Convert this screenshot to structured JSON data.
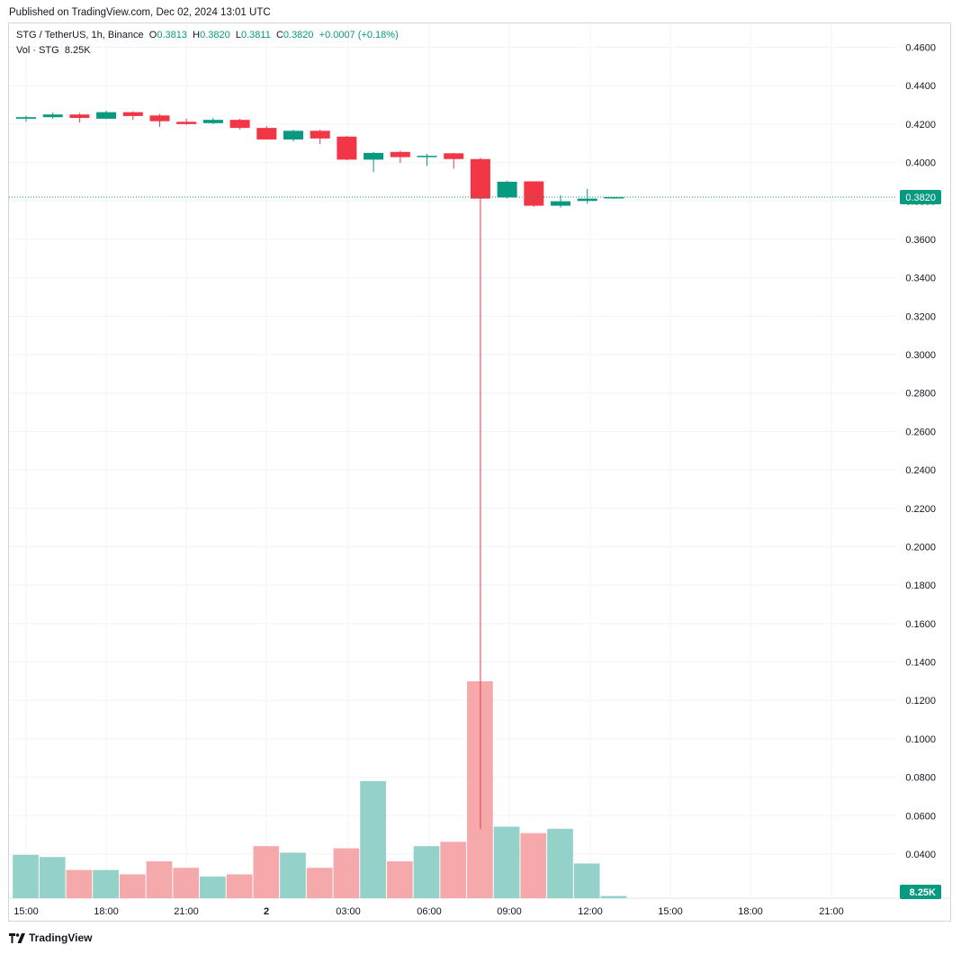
{
  "published": "Published on TradingView.com, Dec 02, 2024 13:01 UTC",
  "legend": {
    "symbol": "STG / TetherUS, 1h, Binance",
    "o_label": "O",
    "o": "0.3813",
    "h_label": "H",
    "h": "0.3820",
    "l_label": "L",
    "l": "0.3811",
    "c_label": "C",
    "c": "0.3820",
    "change": "+0.0007 (+0.18%)"
  },
  "volume_legend": {
    "label": "Vol · STG",
    "value": "8.25K"
  },
  "logo": {
    "name": "TradingView",
    "icon": "tradingview-logo-icon"
  },
  "colors": {
    "up": "#089981",
    "down": "#f23645",
    "vol_up": "#94d1c9",
    "vol_down": "#f5a9ab",
    "grid": "#f0f3fa"
  },
  "chart_data": {
    "type": "candlestick",
    "price_axis": {
      "ylim": [
        0.038,
        0.465
      ],
      "ticks": [
        "0.4600",
        "0.4400",
        "0.4200",
        "0.4000",
        "0.3800",
        "0.3600",
        "0.3400",
        "0.3200",
        "0.3000",
        "0.2800",
        "0.2600",
        "0.2400",
        "0.2200",
        "0.2000",
        "0.1800",
        "0.1600",
        "0.1400",
        "0.1200",
        "0.1000",
        "0.0800",
        "0.0600",
        "0.0400"
      ]
    },
    "x_ticks": [
      "15:00",
      "18:00",
      "21:00",
      "2",
      "03:00",
      "06:00",
      "09:00",
      "12:00",
      "15:00",
      "18:00",
      "21:00"
    ],
    "last_price": "0.3820",
    "last_volume": "8.25K",
    "candles": [
      {
        "time": "Dec 1 14:00",
        "o": 0.4228,
        "h": 0.4244,
        "l": 0.4212,
        "c": 0.4236
      },
      {
        "time": "Dec 1 15:00",
        "o": 0.4236,
        "h": 0.426,
        "l": 0.4228,
        "c": 0.425
      },
      {
        "time": "Dec 1 16:00",
        "o": 0.425,
        "h": 0.4258,
        "l": 0.4208,
        "c": 0.4232
      },
      {
        "time": "Dec 1 17:00",
        "o": 0.4228,
        "h": 0.427,
        "l": 0.4225,
        "c": 0.4262
      },
      {
        "time": "Dec 1 18:00",
        "o": 0.4262,
        "h": 0.4266,
        "l": 0.4222,
        "c": 0.4242
      },
      {
        "time": "Dec 1 19:00",
        "o": 0.4245,
        "h": 0.4252,
        "l": 0.4186,
        "c": 0.4215
      },
      {
        "time": "Dec 1 20:00",
        "o": 0.4212,
        "h": 0.4228,
        "l": 0.4196,
        "c": 0.42
      },
      {
        "time": "Dec 1 21:00",
        "o": 0.4205,
        "h": 0.4232,
        "l": 0.42,
        "c": 0.4222
      },
      {
        "time": "Dec 1 22:00",
        "o": 0.4222,
        "h": 0.4228,
        "l": 0.4172,
        "c": 0.418
      },
      {
        "time": "Dec 1 23:00",
        "o": 0.418,
        "h": 0.419,
        "l": 0.412,
        "c": 0.412
      },
      {
        "time": "Dec 2 00:00",
        "o": 0.412,
        "h": 0.417,
        "l": 0.411,
        "c": 0.4165
      },
      {
        "time": "Dec 2 01:00",
        "o": 0.4165,
        "h": 0.4172,
        "l": 0.4095,
        "c": 0.4125
      },
      {
        "time": "Dec 2 02:00",
        "o": 0.4135,
        "h": 0.4138,
        "l": 0.4012,
        "c": 0.4015
      },
      {
        "time": "Dec 2 03:00",
        "o": 0.4015,
        "h": 0.4055,
        "l": 0.395,
        "c": 0.405
      },
      {
        "time": "Dec 2 04:00",
        "o": 0.4055,
        "h": 0.4062,
        "l": 0.3998,
        "c": 0.4028
      },
      {
        "time": "Dec 2 05:00",
        "o": 0.4032,
        "h": 0.4045,
        "l": 0.3982,
        "c": 0.4035
      },
      {
        "time": "Dec 2 06:00",
        "o": 0.4048,
        "h": 0.405,
        "l": 0.3968,
        "c": 0.4018
      },
      {
        "time": "Dec 2 07:00",
        "o": 0.4018,
        "h": 0.4025,
        "l": 0.053,
        "c": 0.3812
      },
      {
        "time": "Dec 2 08:00",
        "o": 0.3818,
        "h": 0.3905,
        "l": 0.3812,
        "c": 0.39
      },
      {
        "time": "Dec 2 09:00",
        "o": 0.3902,
        "h": 0.3902,
        "l": 0.377,
        "c": 0.3775
      },
      {
        "time": "Dec 2 10:00",
        "o": 0.3775,
        "h": 0.383,
        "l": 0.3765,
        "c": 0.3798
      },
      {
        "time": "Dec 2 11:00",
        "o": 0.38,
        "h": 0.3862,
        "l": 0.3785,
        "c": 0.3812
      },
      {
        "time": "Dec 2 12:00",
        "o": 0.3813,
        "h": 0.382,
        "l": 0.3811,
        "c": 0.382
      }
    ],
    "volume": [
      {
        "v": 0.2,
        "dir": "up"
      },
      {
        "v": 0.19,
        "dir": "up"
      },
      {
        "v": 0.13,
        "dir": "down"
      },
      {
        "v": 0.13,
        "dir": "up"
      },
      {
        "v": 0.11,
        "dir": "down"
      },
      {
        "v": 0.17,
        "dir": "down"
      },
      {
        "v": 0.14,
        "dir": "down"
      },
      {
        "v": 0.1,
        "dir": "up"
      },
      {
        "v": 0.11,
        "dir": "down"
      },
      {
        "v": 0.24,
        "dir": "down"
      },
      {
        "v": 0.21,
        "dir": "up"
      },
      {
        "v": 0.14,
        "dir": "down"
      },
      {
        "v": 0.23,
        "dir": "down"
      },
      {
        "v": 0.54,
        "dir": "up"
      },
      {
        "v": 0.17,
        "dir": "down"
      },
      {
        "v": 0.24,
        "dir": "up"
      },
      {
        "v": 0.26,
        "dir": "down"
      },
      {
        "v": 1.0,
        "dir": "down"
      },
      {
        "v": 0.33,
        "dir": "up"
      },
      {
        "v": 0.3,
        "dir": "down"
      },
      {
        "v": 0.32,
        "dir": "up"
      },
      {
        "v": 0.16,
        "dir": "up"
      },
      {
        "v": 0.01,
        "dir": "up"
      }
    ]
  }
}
